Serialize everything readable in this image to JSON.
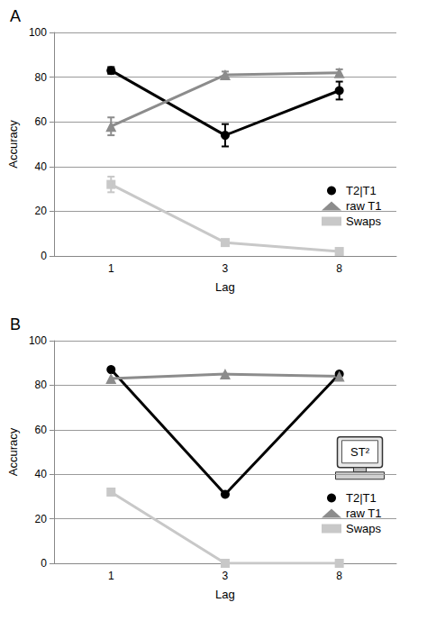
{
  "chart_data": [
    {
      "type": "line",
      "title": "A",
      "x_label": "Lag",
      "y_label": "Accuracy",
      "categories": [
        "1",
        "3",
        "8"
      ],
      "ylim": [
        0,
        100
      ],
      "yticks": [
        0,
        20,
        40,
        60,
        80,
        100
      ],
      "grid": true,
      "legend": "right",
      "series": [
        {
          "name": "T2|T1",
          "color": "#000000",
          "marker": "circle",
          "values": [
            83,
            54,
            74
          ],
          "errors": [
            1.5,
            5,
            4
          ]
        },
        {
          "name": "raw T1",
          "color": "#8c8c8c",
          "marker": "triangle",
          "values": [
            58,
            81,
            82
          ],
          "errors": [
            4,
            1.5,
            1.5
          ]
        },
        {
          "name": "Swaps",
          "color": "#c8c8c8",
          "marker": "square",
          "values": [
            32,
            6,
            2
          ],
          "errors": [
            3.5,
            1,
            1
          ]
        }
      ]
    },
    {
      "type": "line",
      "title": "B",
      "x_label": "Lag",
      "y_label": "Accuracy",
      "categories": [
        "1",
        "3",
        "8"
      ],
      "ylim": [
        0,
        100
      ],
      "yticks": [
        0,
        20,
        40,
        60,
        80,
        100
      ],
      "grid": true,
      "legend": "right",
      "annotation": "ST²",
      "series": [
        {
          "name": "T2|T1",
          "color": "#000000",
          "marker": "circle",
          "values": [
            87,
            31,
            85
          ]
        },
        {
          "name": "raw T1",
          "color": "#8c8c8c",
          "marker": "triangle",
          "values": [
            83,
            85,
            84
          ]
        },
        {
          "name": "Swaps",
          "color": "#c8c8c8",
          "marker": "square",
          "values": [
            32,
            0,
            0
          ]
        }
      ]
    }
  ]
}
